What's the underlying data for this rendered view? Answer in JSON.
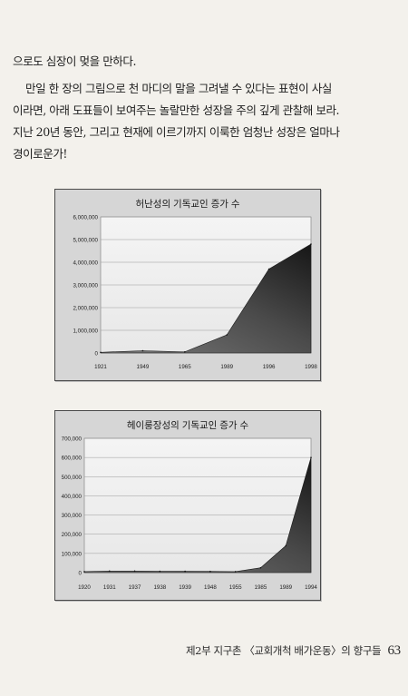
{
  "body_text": {
    "line_1": "으로도 심장이 멎을 만하다.",
    "line_2": "만일 한 장의 그림으로 천 마디의 말을 그려낼 수 있다는 표현이 사실",
    "line_3": "이라면, 아래 도표들이 보여주는 놀랄만한 성장을 주의 깊게 관찰해 보라.",
    "line_4": "지난 20년 동안, 그리고 현재에 이르기까지 이룩한 엄청난 성장은 얼마나",
    "line_5": "경이로운가!"
  },
  "chart_data": [
    {
      "type": "area",
      "title": "허난성의 기독교인 증가 수",
      "categories": [
        "1921",
        "1949",
        "1965",
        "1989",
        "1996",
        "1998"
      ],
      "values": [
        30000,
        100000,
        50000,
        800000,
        3700000,
        4800000
      ],
      "ylim": [
        0,
        6000000
      ],
      "yticks": [
        "6,000,000",
        "5,000,000",
        "4,000,000",
        "3,000,000",
        "2,000,000",
        "1,000,000",
        "0"
      ],
      "grid": true
    },
    {
      "type": "area",
      "title": "헤이룽장성의 기독교인 증가 수",
      "categories": [
        "1920",
        "1931",
        "1937",
        "1938",
        "1939",
        "1948",
        "1955",
        "1985",
        "1989",
        "1994"
      ],
      "values": [
        5000,
        8000,
        8000,
        7000,
        7000,
        6000,
        5000,
        25000,
        140000,
        600000
      ],
      "ylim": [
        0,
        700000
      ],
      "yticks": [
        "700,000",
        "600,000",
        "500,000",
        "400,000",
        "300,000",
        "200,000",
        "100,000",
        "0"
      ],
      "grid": true
    }
  ],
  "footer": {
    "running_head": "제2부 지구촌 〈교회개척 배가운동〉의 향구들",
    "page_number": "63"
  }
}
